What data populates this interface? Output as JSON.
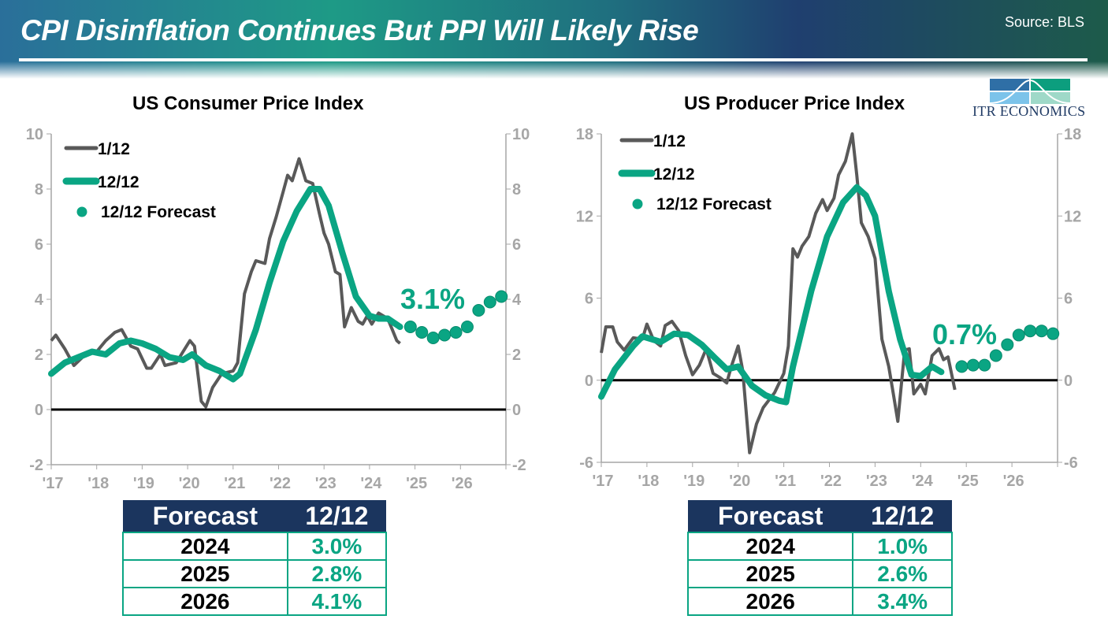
{
  "header": {
    "title": "CPI Disinflation Continues But PPI Will Likely Rise",
    "source": "Source: BLS",
    "logo_text": "ITR ECONOMICS"
  },
  "colors": {
    "actual": "#595959",
    "trend": "#0aa583",
    "table_header": "#1b355e",
    "zero_line": "#000000"
  },
  "chart_data": [
    {
      "type": "line",
      "title": "US Consumer Price Index",
      "ylim": [
        -2,
        10
      ],
      "yticks": [
        -2,
        0,
        2,
        4,
        6,
        8,
        10
      ],
      "xlim": [
        2017,
        2027
      ],
      "xticks": [
        "'17",
        "'18",
        "'19",
        "'20",
        "'21",
        "'22",
        "'23",
        "'24",
        "'25",
        "'26"
      ],
      "legend": [
        "1/12",
        "12/12",
        "12/12 Forecast"
      ],
      "legend_position": "top-left",
      "annotation": "3.1%",
      "series": [
        {
          "name": "1/12",
          "points": [
            [
              2017.0,
              2.5
            ],
            [
              2017.1,
              2.7
            ],
            [
              2017.3,
              2.2
            ],
            [
              2017.5,
              1.6
            ],
            [
              2017.75,
              2.0
            ],
            [
              2018.0,
              2.1
            ],
            [
              2018.2,
              2.5
            ],
            [
              2018.4,
              2.8
            ],
            [
              2018.55,
              2.9
            ],
            [
              2018.75,
              2.3
            ],
            [
              2018.9,
              2.2
            ],
            [
              2019.1,
              1.5
            ],
            [
              2019.2,
              1.5
            ],
            [
              2019.4,
              2.0
            ],
            [
              2019.5,
              1.6
            ],
            [
              2019.75,
              1.7
            ],
            [
              2019.9,
              2.1
            ],
            [
              2020.05,
              2.5
            ],
            [
              2020.15,
              2.3
            ],
            [
              2020.3,
              0.3
            ],
            [
              2020.4,
              0.1
            ],
            [
              2020.55,
              0.8
            ],
            [
              2020.75,
              1.3
            ],
            [
              2021.0,
              1.4
            ],
            [
              2021.1,
              1.7
            ],
            [
              2021.25,
              4.2
            ],
            [
              2021.4,
              5.0
            ],
            [
              2021.5,
              5.4
            ],
            [
              2021.7,
              5.3
            ],
            [
              2021.8,
              6.2
            ],
            [
              2021.95,
              7.0
            ],
            [
              2022.1,
              7.9
            ],
            [
              2022.2,
              8.5
            ],
            [
              2022.3,
              8.3
            ],
            [
              2022.45,
              9.1
            ],
            [
              2022.6,
              8.3
            ],
            [
              2022.75,
              8.2
            ],
            [
              2022.9,
              7.1
            ],
            [
              2023.0,
              6.4
            ],
            [
              2023.1,
              6.0
            ],
            [
              2023.25,
              5.0
            ],
            [
              2023.35,
              4.9
            ],
            [
              2023.45,
              3.0
            ],
            [
              2023.6,
              3.7
            ],
            [
              2023.75,
              3.2
            ],
            [
              2023.85,
              3.1
            ],
            [
              2023.95,
              3.4
            ],
            [
              2024.05,
              3.1
            ],
            [
              2024.2,
              3.5
            ],
            [
              2024.4,
              3.3
            ],
            [
              2024.5,
              2.9
            ],
            [
              2024.6,
              2.5
            ],
            [
              2024.67,
              2.4
            ]
          ]
        },
        {
          "name": "12/12",
          "points": [
            [
              2017.0,
              1.3
            ],
            [
              2017.3,
              1.7
            ],
            [
              2017.6,
              1.9
            ],
            [
              2017.9,
              2.1
            ],
            [
              2018.2,
              2.0
            ],
            [
              2018.5,
              2.4
            ],
            [
              2018.75,
              2.5
            ],
            [
              2019.0,
              2.4
            ],
            [
              2019.3,
              2.2
            ],
            [
              2019.6,
              1.9
            ],
            [
              2019.9,
              1.8
            ],
            [
              2020.1,
              2.0
            ],
            [
              2020.4,
              1.6
            ],
            [
              2020.7,
              1.4
            ],
            [
              2021.0,
              1.1
            ],
            [
              2021.15,
              1.3
            ],
            [
              2021.5,
              2.9
            ],
            [
              2021.8,
              4.6
            ],
            [
              2022.1,
              6.1
            ],
            [
              2022.4,
              7.2
            ],
            [
              2022.7,
              8.0
            ],
            [
              2022.9,
              8.0
            ],
            [
              2023.1,
              7.4
            ],
            [
              2023.4,
              5.7
            ],
            [
              2023.7,
              4.1
            ],
            [
              2024.0,
              3.4
            ],
            [
              2024.2,
              3.3
            ],
            [
              2024.4,
              3.3
            ],
            [
              2024.67,
              3.0
            ]
          ]
        },
        {
          "name": "12/12 Forecast",
          "points": [
            [
              2024.9,
              3.0
            ],
            [
              2025.15,
              2.8
            ],
            [
              2025.4,
              2.6
            ],
            [
              2025.65,
              2.7
            ],
            [
              2025.9,
              2.8
            ],
            [
              2026.15,
              3.0
            ],
            [
              2026.4,
              3.6
            ],
            [
              2026.65,
              3.9
            ],
            [
              2026.9,
              4.1
            ]
          ]
        }
      ]
    },
    {
      "type": "line",
      "title": "US Producer Price Index",
      "ylim": [
        -6,
        18
      ],
      "yticks": [
        -6,
        0,
        6,
        12,
        18
      ],
      "xlim": [
        2017,
        2027
      ],
      "xticks": [
        "'17",
        "'18",
        "'19",
        "'20",
        "'21",
        "'22",
        "'23",
        "'24",
        "'25",
        "'26"
      ],
      "legend": [
        "1/12",
        "12/12",
        "12/12 Forecast"
      ],
      "legend_position": "top-left",
      "annotation": "0.7%",
      "series": [
        {
          "name": "1/12",
          "points": [
            [
              2017.0,
              2.0
            ],
            [
              2017.1,
              3.9
            ],
            [
              2017.25,
              3.9
            ],
            [
              2017.35,
              2.8
            ],
            [
              2017.5,
              2.2
            ],
            [
              2017.7,
              3.1
            ],
            [
              2017.9,
              3.0
            ],
            [
              2018.0,
              4.1
            ],
            [
              2018.15,
              2.9
            ],
            [
              2018.3,
              2.5
            ],
            [
              2018.4,
              4.0
            ],
            [
              2018.55,
              4.3
            ],
            [
              2018.7,
              3.6
            ],
            [
              2018.85,
              1.8
            ],
            [
              2019.0,
              0.4
            ],
            [
              2019.15,
              1.1
            ],
            [
              2019.3,
              2.3
            ],
            [
              2019.45,
              0.5
            ],
            [
              2019.6,
              0.2
            ],
            [
              2019.75,
              -0.2
            ],
            [
              2019.85,
              1.0
            ],
            [
              2020.0,
              2.5
            ],
            [
              2020.1,
              0.7
            ],
            [
              2020.25,
              -5.3
            ],
            [
              2020.4,
              -3.2
            ],
            [
              2020.55,
              -2.0
            ],
            [
              2020.8,
              -0.9
            ],
            [
              2021.0,
              0.5
            ],
            [
              2021.1,
              2.5
            ],
            [
              2021.2,
              9.6
            ],
            [
              2021.3,
              9.0
            ],
            [
              2021.4,
              9.8
            ],
            [
              2021.55,
              10.5
            ],
            [
              2021.7,
              12.2
            ],
            [
              2021.85,
              13.2
            ],
            [
              2021.95,
              12.4
            ],
            [
              2022.1,
              13.3
            ],
            [
              2022.2,
              15.0
            ],
            [
              2022.35,
              16.0
            ],
            [
              2022.5,
              18.0
            ],
            [
              2022.6,
              15.0
            ],
            [
              2022.7,
              11.5
            ],
            [
              2022.85,
              10.5
            ],
            [
              2023.0,
              8.9
            ],
            [
              2023.15,
              3.0
            ],
            [
              2023.3,
              1.0
            ],
            [
              2023.4,
              -1.0
            ],
            [
              2023.5,
              -3.0
            ],
            [
              2023.65,
              2.2
            ],
            [
              2023.75,
              2.3
            ],
            [
              2023.85,
              -1.0
            ],
            [
              2024.0,
              -0.3
            ],
            [
              2024.1,
              -1.0
            ],
            [
              2024.25,
              1.8
            ],
            [
              2024.4,
              2.3
            ],
            [
              2024.5,
              1.5
            ],
            [
              2024.6,
              1.7
            ],
            [
              2024.75,
              -0.7
            ]
          ]
        },
        {
          "name": "12/12",
          "points": [
            [
              2017.0,
              -1.2
            ],
            [
              2017.3,
              0.8
            ],
            [
              2017.7,
              2.5
            ],
            [
              2017.9,
              3.2
            ],
            [
              2018.3,
              2.8
            ],
            [
              2018.6,
              3.4
            ],
            [
              2018.9,
              3.3
            ],
            [
              2019.2,
              2.6
            ],
            [
              2019.5,
              1.6
            ],
            [
              2019.75,
              0.8
            ],
            [
              2020.0,
              1.0
            ],
            [
              2020.3,
              -0.4
            ],
            [
              2020.6,
              -1.1
            ],
            [
              2020.9,
              -1.5
            ],
            [
              2021.05,
              -1.6
            ],
            [
              2021.2,
              1.0
            ],
            [
              2021.6,
              6.5
            ],
            [
              2021.95,
              10.5
            ],
            [
              2022.3,
              13.0
            ],
            [
              2022.6,
              14.1
            ],
            [
              2022.8,
              13.5
            ],
            [
              2023.0,
              12.0
            ],
            [
              2023.3,
              6.5
            ],
            [
              2023.55,
              3.0
            ],
            [
              2023.8,
              0.4
            ],
            [
              2024.0,
              0.3
            ],
            [
              2024.25,
              1.0
            ],
            [
              2024.45,
              0.6
            ]
          ]
        },
        {
          "name": "12/12 Forecast",
          "points": [
            [
              2024.9,
              1.0
            ],
            [
              2025.15,
              1.1
            ],
            [
              2025.4,
              1.1
            ],
            [
              2025.65,
              1.8
            ],
            [
              2025.9,
              2.6
            ],
            [
              2026.15,
              3.3
            ],
            [
              2026.4,
              3.6
            ],
            [
              2026.65,
              3.6
            ],
            [
              2026.9,
              3.4
            ]
          ]
        }
      ]
    }
  ],
  "tables": [
    {
      "headers": [
        "Forecast",
        "12/12"
      ],
      "rows": [
        [
          "2024",
          "3.0%"
        ],
        [
          "2025",
          "2.8%"
        ],
        [
          "2026",
          "4.1%"
        ]
      ]
    },
    {
      "headers": [
        "Forecast",
        "12/12"
      ],
      "rows": [
        [
          "2024",
          "1.0%"
        ],
        [
          "2025",
          "2.6%"
        ],
        [
          "2026",
          "3.4%"
        ]
      ]
    }
  ]
}
